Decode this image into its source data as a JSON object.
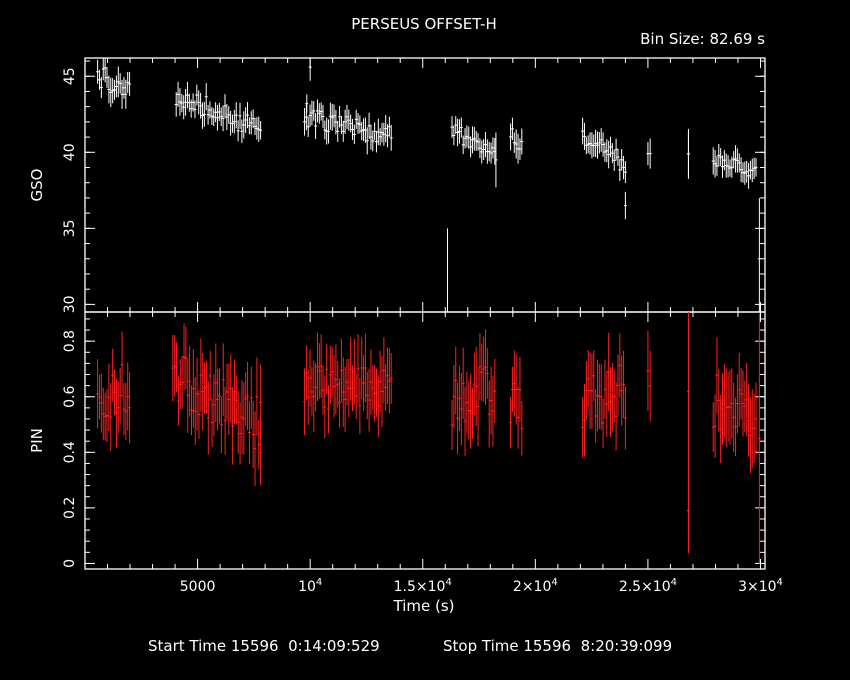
{
  "chart_data": {
    "type": "scatter",
    "title": "PERSEUS OFFSET-H",
    "bin_size_label": "Bin Size: 82.69 s",
    "xlabel": "Time (s)",
    "xlim": [
      0,
      30200
    ],
    "x_ticks": [
      {
        "value": 5000,
        "label": "5000"
      },
      {
        "value": 10000,
        "label": "10",
        "sup": "4"
      },
      {
        "value": 15000,
        "label": "1.5×10",
        "sup": "4"
      },
      {
        "value": 20000,
        "label": "2×10",
        "sup": "4"
      },
      {
        "value": 25000,
        "label": "2.5×10",
        "sup": "4"
      },
      {
        "value": 30000,
        "label": "3×10",
        "sup": "4"
      }
    ],
    "footer": {
      "start": "Start Time 15596  0:14:09:529",
      "stop": "Stop Time 15596  8:20:39:099"
    },
    "panels": [
      {
        "name": "GSO",
        "ylabel": "GSO",
        "ylim": [
          29.5,
          46.2
        ],
        "y_ticks": [
          30,
          35,
          40,
          45
        ],
        "color": "#ffffff",
        "segments": [
          {
            "x0": 560,
            "x1": 1980,
            "start": 45.3,
            "end": 44.0,
            "noise": 0.9,
            "err": 0.8
          },
          {
            "x0": 4050,
            "x1": 7800,
            "start": 43.8,
            "end": 41.5,
            "noise": 0.7,
            "err": 0.7
          },
          {
            "x0": 9750,
            "x1": 13600,
            "start": 42.3,
            "end": 41.0,
            "noise": 0.7,
            "err": 0.7
          },
          {
            "x0": 16300,
            "x1": 18200,
            "start": 41.5,
            "end": 39.7,
            "noise": 0.6,
            "err": 0.7
          },
          {
            "x0": 18900,
            "x1": 19400,
            "start": 41.2,
            "end": 40.3,
            "noise": 0.5,
            "err": 0.8
          },
          {
            "x0": 22100,
            "x1": 24000,
            "start": 41.0,
            "end": 39.2,
            "noise": 0.6,
            "err": 0.7
          },
          {
            "x0": 25000,
            "x1": 25100,
            "start": 40.1,
            "end": 40.1,
            "noise": 0.2,
            "err": 0.8
          },
          {
            "x0": 26800,
            "x1": 26800,
            "start": 39.9,
            "end": 39.9,
            "noise": 0.0,
            "err": 1.6
          },
          {
            "x0": 27900,
            "x1": 29800,
            "start": 39.6,
            "end": 38.6,
            "noise": 0.5,
            "err": 0.7
          }
        ],
        "extra_points": [
          {
            "x": 9850,
            "y": 43.2,
            "err": 0.6
          },
          {
            "x": 10000,
            "y": 45.6,
            "err": 0.9
          },
          {
            "x": 16100,
            "y": 27.0,
            "err": 8.0
          },
          {
            "x": 24000,
            "y": 36.5,
            "err": 0.9
          },
          {
            "x": 18250,
            "y": 39.5,
            "err": 1.8
          },
          {
            "x": 29950,
            "y": 33.0,
            "err": 4.0
          }
        ]
      },
      {
        "name": "PIN",
        "ylabel": "PIN",
        "ylim": [
          -0.02,
          0.905
        ],
        "y_ticks": [
          0,
          0.2,
          0.4,
          0.6,
          0.8
        ],
        "color": "#ff2020",
        "segments": [
          {
            "x0": 560,
            "x1": 1980,
            "start": 0.59,
            "end": 0.64,
            "noise": 0.09,
            "err": 0.1
          },
          {
            "x0": 3900,
            "x1": 7800,
            "start": 0.69,
            "end": 0.5,
            "noise": 0.1,
            "err": 0.11
          },
          {
            "x0": 9750,
            "x1": 13600,
            "start": 0.63,
            "end": 0.64,
            "noise": 0.08,
            "err": 0.1
          },
          {
            "x0": 16300,
            "x1": 18200,
            "start": 0.55,
            "end": 0.65,
            "noise": 0.1,
            "err": 0.11
          },
          {
            "x0": 18900,
            "x1": 19400,
            "start": 0.58,
            "end": 0.55,
            "noise": 0.08,
            "err": 0.1
          },
          {
            "x0": 22100,
            "x1": 24000,
            "start": 0.58,
            "end": 0.62,
            "noise": 0.1,
            "err": 0.11
          },
          {
            "x0": 25000,
            "x1": 25100,
            "start": 0.68,
            "end": 0.66,
            "noise": 0.03,
            "err": 0.12
          },
          {
            "x0": 26800,
            "x1": 26800,
            "start": 0.19,
            "end": 0.19,
            "noise": 0.0,
            "err": 0.12
          },
          {
            "x0": 27900,
            "x1": 29800,
            "start": 0.58,
            "end": 0.55,
            "noise": 0.1,
            "err": 0.11
          }
        ],
        "extra_points": [
          {
            "x": 7800,
            "y": 0.4,
            "err": 0.12
          },
          {
            "x": 26800,
            "y": 0.62,
            "err": 0.3
          },
          {
            "x": 29950,
            "y": 0.45,
            "err": 0.45
          }
        ]
      }
    ]
  }
}
